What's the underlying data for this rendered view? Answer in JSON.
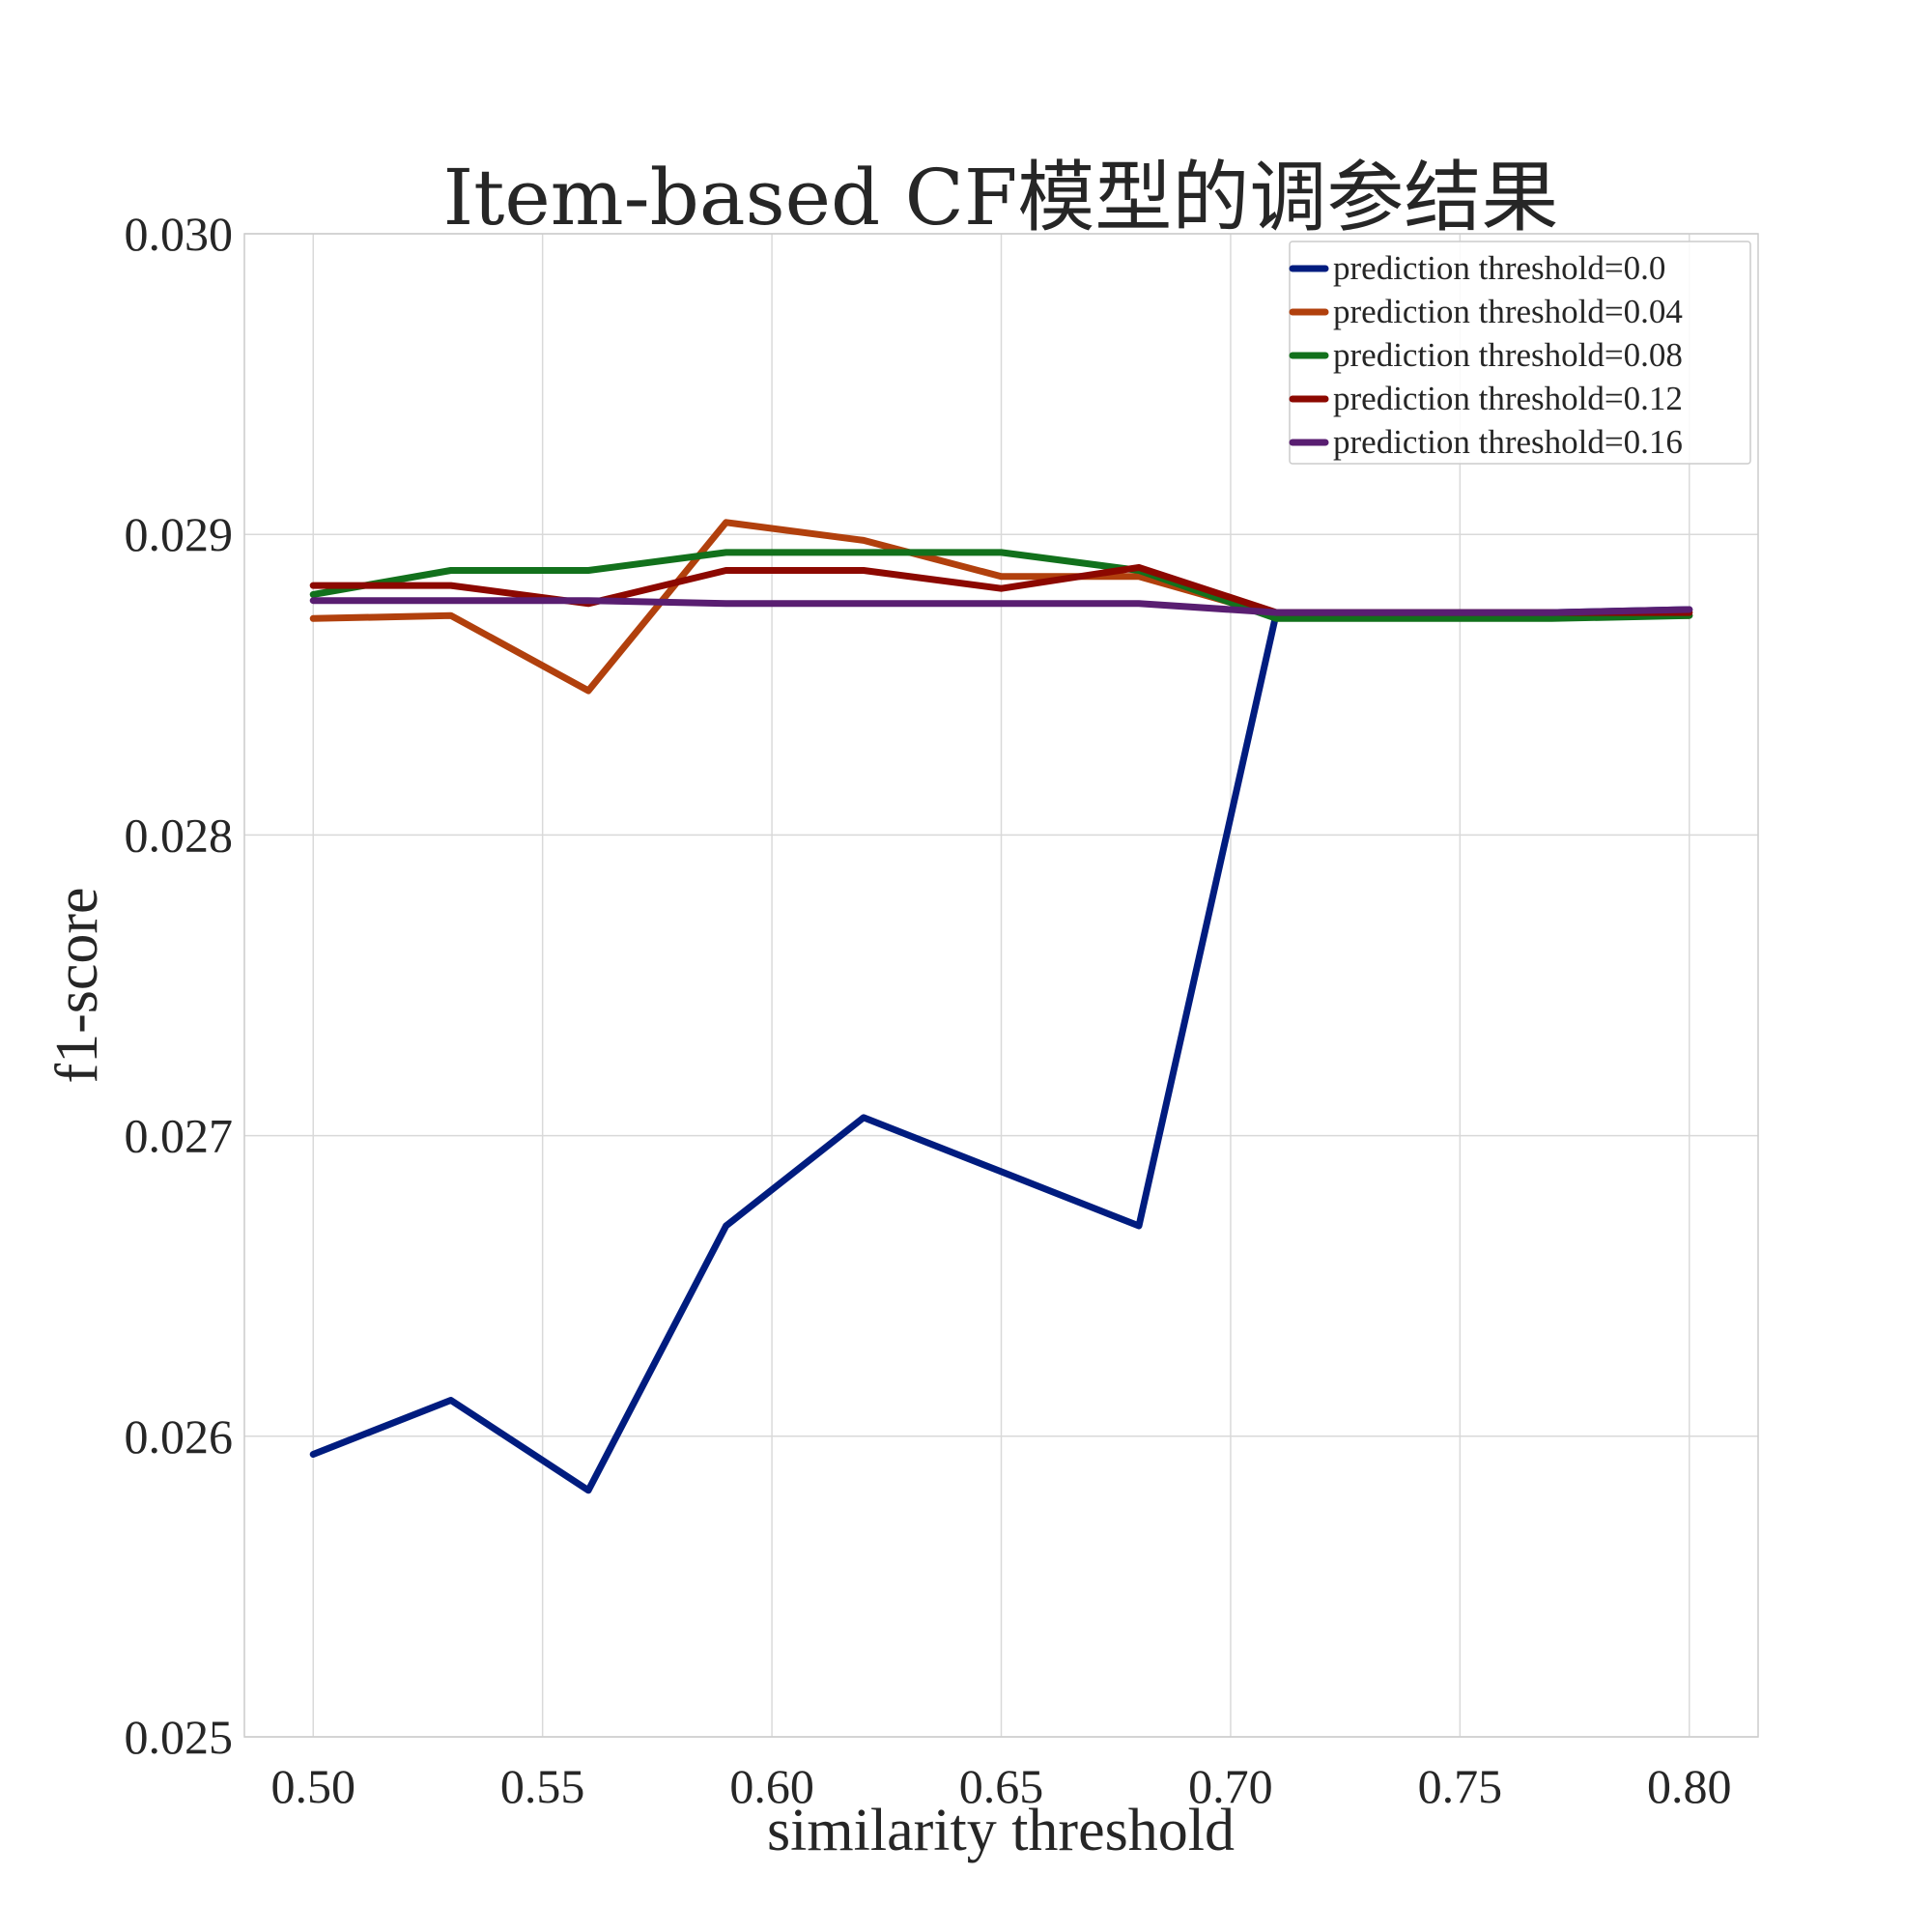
{
  "chart_data": {
    "type": "line",
    "title": "Item-based CF模型的调参结果",
    "xlabel": "similarity threshold",
    "ylabel": "f1-score",
    "xlim": [
      0.485,
      0.815
    ],
    "ylim": [
      0.025,
      0.03
    ],
    "xticks": [
      0.5,
      0.55,
      0.6,
      0.65,
      0.7,
      0.75,
      0.8
    ],
    "xtick_labels": [
      "0.50",
      "0.55",
      "0.60",
      "0.65",
      "0.70",
      "0.75",
      "0.80"
    ],
    "yticks": [
      0.025,
      0.026,
      0.027,
      0.028,
      0.029,
      0.03
    ],
    "ytick_labels": [
      "0.025",
      "0.026",
      "0.027",
      "0.028",
      "0.029",
      "0.030"
    ],
    "grid": true,
    "legend_position": "top-right",
    "x": [
      0.5,
      0.53,
      0.56,
      0.59,
      0.62,
      0.65,
      0.68,
      0.71,
      0.74,
      0.77,
      0.8
    ],
    "series": [
      {
        "name": "prediction threshold=0.0",
        "color": "#001c7f",
        "values": [
          0.02594,
          0.02612,
          0.02582,
          0.0267,
          0.02706,
          0.02688,
          0.0267,
          0.02874,
          0.02874,
          0.02874,
          0.02875
        ]
      },
      {
        "name": "prediction threshold=0.04",
        "color": "#b1400d",
        "values": [
          0.02872,
          0.02873,
          0.02848,
          0.02904,
          0.02898,
          0.02886,
          0.02886,
          0.02873,
          0.02873,
          0.02873,
          0.02873
        ]
      },
      {
        "name": "prediction threshold=0.08",
        "color": "#12711c",
        "values": [
          0.0288,
          0.02888,
          0.02888,
          0.02894,
          0.02894,
          0.02894,
          0.02888,
          0.02872,
          0.02872,
          0.02872,
          0.02873
        ]
      },
      {
        "name": "prediction threshold=0.12",
        "color": "#8c0800",
        "values": [
          0.02883,
          0.02883,
          0.02877,
          0.02888,
          0.02888,
          0.02882,
          0.02889,
          0.02874,
          0.02874,
          0.02874,
          0.02874
        ]
      },
      {
        "name": "prediction threshold=0.16",
        "color": "#591e71",
        "values": [
          0.02878,
          0.02878,
          0.02878,
          0.02877,
          0.02877,
          0.02877,
          0.02877,
          0.02874,
          0.02874,
          0.02874,
          0.02875
        ]
      }
    ]
  }
}
